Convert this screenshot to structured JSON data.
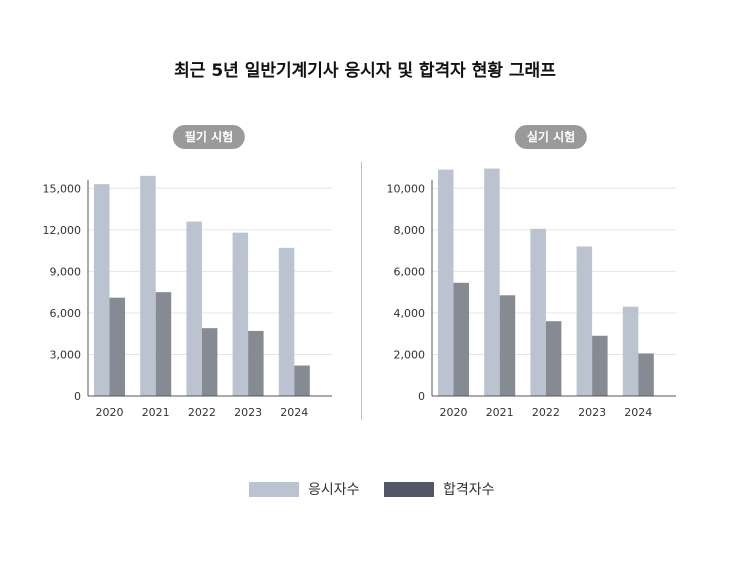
{
  "title": "최근 5년 일반기계기사 응시자 및 합격자 현황 그래프",
  "colors": {
    "applicants": "#bcc3d0",
    "passers": "#868a93",
    "legend_passers": "#525866",
    "grid": "#e6e6e6",
    "axis": "#555555"
  },
  "legend": [
    {
      "label": "응시자수",
      "color": "#bcc3d0"
    },
    {
      "label": "합격자수",
      "color": "#525866"
    }
  ],
  "chart_data": [
    {
      "type": "bar",
      "title": "필기 시험",
      "categories": [
        "2020",
        "2021",
        "2022",
        "2023",
        "2024"
      ],
      "series": [
        {
          "name": "응시자수",
          "values": [
            15300,
            15900,
            12600,
            11800,
            10700
          ]
        },
        {
          "name": "합격자수",
          "values": [
            7100,
            7500,
            4900,
            4700,
            2200
          ]
        }
      ],
      "yticks": [
        "0",
        "3,000",
        "6,000",
        "9,000",
        "12,000",
        "15,000"
      ],
      "ytick_values": [
        0,
        3000,
        6000,
        9000,
        12000,
        15000
      ],
      "ylim": [
        0,
        15600
      ],
      "grid": true
    },
    {
      "type": "bar",
      "title": "실기 시험",
      "categories": [
        "2020",
        "2021",
        "2022",
        "2023",
        "2024"
      ],
      "series": [
        {
          "name": "응시자수",
          "values": [
            10900,
            10950,
            8050,
            7200,
            4300
          ]
        },
        {
          "name": "합격자수",
          "values": [
            5450,
            4850,
            3600,
            2900,
            2050
          ]
        }
      ],
      "yticks": [
        "0",
        "2,000",
        "4,000",
        "6,000",
        "8,000",
        "10,000"
      ],
      "ytick_values": [
        0,
        2000,
        4000,
        6000,
        8000,
        10000
      ],
      "ylim": [
        0,
        10400
      ],
      "grid": true
    }
  ]
}
